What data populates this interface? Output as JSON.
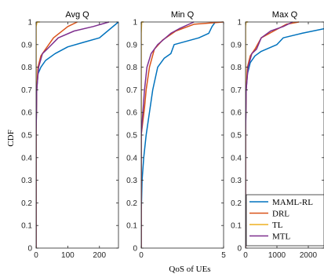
{
  "chart_data": {
    "type": "line",
    "ylabel": "CDF",
    "xlabel": "QoS of UEs",
    "ylim": [
      0,
      1
    ],
    "yticks": [
      0,
      0.1,
      0.2,
      0.3,
      0.4,
      0.5,
      0.6,
      0.7,
      0.8,
      0.9,
      1
    ],
    "ytick_labels": [
      "0",
      "0.1",
      "0.2",
      "0.3",
      "0.4",
      "0.5",
      "0.6",
      "0.7",
      "0.8",
      "0.9",
      "1"
    ],
    "grid": false,
    "legend": {
      "placement": "bottom-right of third panel",
      "entries": [
        {
          "name": "MAML-RL",
          "color": "#0072BD"
        },
        {
          "name": "DRL",
          "color": "#D95319"
        },
        {
          "name": "TL",
          "color": "#EDB120"
        },
        {
          "name": "MTL",
          "color": "#7E2F8E"
        }
      ]
    },
    "panels": [
      {
        "title": "Avg Q",
        "xlim": [
          0,
          260
        ],
        "xticks": [
          0,
          100,
          200
        ],
        "xtick_labels": [
          "0",
          "100",
          "200"
        ],
        "series": [
          {
            "name": "MAML-RL",
            "color": "#0072BD",
            "points": [
              [
                0,
                0
              ],
              [
                0,
                0.5
              ],
              [
                2,
                0.7
              ],
              [
                6,
                0.77
              ],
              [
                15,
                0.8
              ],
              [
                30,
                0.83
              ],
              [
                60,
                0.86
              ],
              [
                100,
                0.89
              ],
              [
                150,
                0.91
              ],
              [
                200,
                0.93
              ],
              [
                260,
                1.0
              ]
            ]
          },
          {
            "name": "DRL",
            "color": "#D95319",
            "points": [
              [
                0,
                0
              ],
              [
                0,
                0.5
              ],
              [
                2,
                0.7
              ],
              [
                6,
                0.8
              ],
              [
                15,
                0.85
              ],
              [
                30,
                0.88
              ],
              [
                55,
                0.93
              ],
              [
                100,
                0.98
              ],
              [
                130,
                1.0
              ]
            ]
          },
          {
            "name": "TL",
            "color": "#EDB120",
            "points": [
              [
                0,
                0
              ],
              [
                0,
                0.98
              ],
              [
                3,
                1.0
              ],
              [
                12,
                1.0
              ]
            ]
          },
          {
            "name": "MTL",
            "color": "#7E2F8E",
            "points": [
              [
                0,
                0
              ],
              [
                0,
                0.5
              ],
              [
                2,
                0.7
              ],
              [
                8,
                0.8
              ],
              [
                20,
                0.86
              ],
              [
                35,
                0.88
              ],
              [
                70,
                0.93
              ],
              [
                120,
                0.96
              ],
              [
                180,
                0.98
              ],
              [
                230,
                1.0
              ]
            ]
          }
        ]
      },
      {
        "title": "Min Q",
        "xlim": [
          0,
          5
        ],
        "xticks": [
          0,
          5
        ],
        "xtick_labels": [
          "0",
          "5"
        ],
        "series": [
          {
            "name": "MAML-RL",
            "color": "#0072BD",
            "points": [
              [
                0,
                0
              ],
              [
                0,
                0.15
              ],
              [
                0.05,
                0.3
              ],
              [
                0.15,
                0.4
              ],
              [
                0.3,
                0.5
              ],
              [
                0.5,
                0.6
              ],
              [
                0.7,
                0.7
              ],
              [
                1.0,
                0.8
              ],
              [
                1.4,
                0.84
              ],
              [
                1.8,
                0.86
              ],
              [
                2.0,
                0.9
              ],
              [
                3.5,
                0.93
              ],
              [
                4.1,
                0.95
              ],
              [
                4.3,
                0.98
              ],
              [
                4.5,
                1.0
              ]
            ]
          },
          {
            "name": "DRL",
            "color": "#D95319",
            "points": [
              [
                0,
                0
              ],
              [
                0,
                0.5
              ],
              [
                0.1,
                0.56
              ],
              [
                0.2,
                0.62
              ],
              [
                0.3,
                0.7
              ],
              [
                0.5,
                0.8
              ],
              [
                0.8,
                0.88
              ],
              [
                1.3,
                0.92
              ],
              [
                2.1,
                0.96
              ],
              [
                3.2,
                0.99
              ],
              [
                5.0,
                1.0
              ]
            ]
          },
          {
            "name": "TL",
            "color": "#EDB120",
            "points": [
              [
                0,
                0
              ],
              [
                0,
                0.95
              ],
              [
                0.03,
                1.0
              ],
              [
                0.15,
                1.0
              ]
            ]
          },
          {
            "name": "MTL",
            "color": "#7E2F8E",
            "points": [
              [
                0,
                0
              ],
              [
                0,
                0.5
              ],
              [
                0.1,
                0.6
              ],
              [
                0.2,
                0.7
              ],
              [
                0.35,
                0.8
              ],
              [
                0.6,
                0.86
              ],
              [
                1.0,
                0.9
              ],
              [
                1.8,
                0.95
              ],
              [
                2.3,
                0.97
              ],
              [
                3.2,
                1.0
              ]
            ]
          }
        ]
      },
      {
        "title": "Max Q",
        "xlim": [
          0,
          2500
        ],
        "xticks": [
          0,
          1000,
          2000
        ],
        "xtick_labels": [
          "0",
          "1000",
          "2000"
        ],
        "series": [
          {
            "name": "MAML-RL",
            "color": "#0072BD",
            "points": [
              [
                0,
                0
              ],
              [
                0,
                0.5
              ],
              [
                20,
                0.7
              ],
              [
                60,
                0.77
              ],
              [
                150,
                0.82
              ],
              [
                300,
                0.85
              ],
              [
                500,
                0.87
              ],
              [
                1000,
                0.9
              ],
              [
                1200,
                0.93
              ],
              [
                1800,
                0.95
              ],
              [
                2500,
                0.97
              ]
            ]
          },
          {
            "name": "DRL",
            "color": "#D95319",
            "points": [
              [
                0,
                0
              ],
              [
                0,
                0.5
              ],
              [
                20,
                0.7
              ],
              [
                60,
                0.8
              ],
              [
                150,
                0.85
              ],
              [
                300,
                0.88
              ],
              [
                500,
                0.93
              ],
              [
                900,
                0.96
              ],
              [
                1300,
                0.99
              ],
              [
                1700,
                1.0
              ]
            ]
          },
          {
            "name": "TL",
            "color": "#EDB120",
            "points": [
              [
                0,
                0
              ],
              [
                0,
                0.98
              ],
              [
                15,
                1.0
              ],
              [
                80,
                1.0
              ]
            ]
          },
          {
            "name": "MTL",
            "color": "#7E2F8E",
            "points": [
              [
                0,
                0
              ],
              [
                0,
                0.5
              ],
              [
                20,
                0.7
              ],
              [
                80,
                0.8
              ],
              [
                200,
                0.86
              ],
              [
                350,
                0.88
              ],
              [
                500,
                0.93
              ],
              [
                800,
                0.96
              ],
              [
                1200,
                0.98
              ],
              [
                1500,
                1.0
              ]
            ]
          }
        ]
      }
    ]
  }
}
